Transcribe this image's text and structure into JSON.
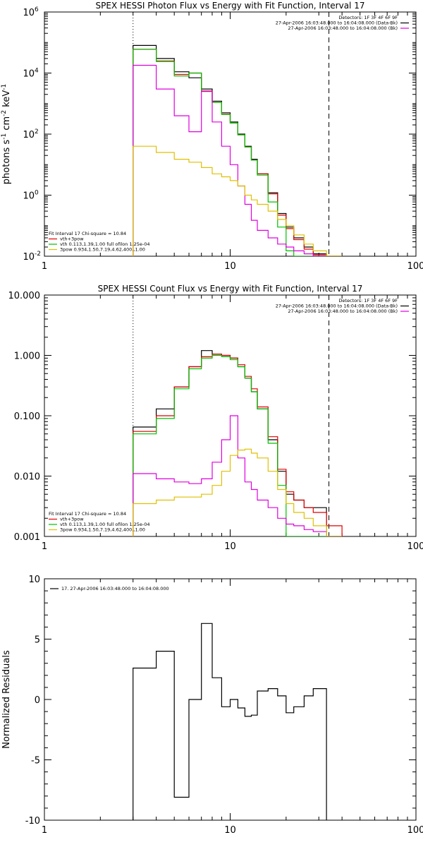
{
  "chart_data": [
    {
      "type": "line",
      "title": "SPEX HESSI Photon Flux vs Energy with Fit Function, Interval 17",
      "ylabel_parts": [
        "photons s",
        "-1",
        " cm",
        "-2",
        " keV",
        "-1"
      ],
      "xscale": "log",
      "yscale": "log",
      "xlim": [
        1,
        100
      ],
      "ylim": [
        0.01,
        1000000
      ],
      "x_ticks": [
        {
          "v": 1,
          "label": "1"
        },
        {
          "v": 10,
          "label": "10"
        },
        {
          "v": 100,
          "label": "100"
        }
      ],
      "y_ticks_exp": [
        {
          "v": 0.01,
          "base": "10",
          "exp": "-2"
        },
        {
          "v": 1,
          "base": "10",
          "exp": "0"
        },
        {
          "v": 100,
          "base": "10",
          "exp": "2"
        },
        {
          "v": 10000,
          "base": "10",
          "exp": "4"
        },
        {
          "v": 1000000,
          "base": "10",
          "exp": "6"
        }
      ],
      "vlines": [
        {
          "x": 3.0,
          "style": "dotted"
        },
        {
          "x": 34.0,
          "style": "dashed"
        }
      ],
      "legend_tr": [
        {
          "text": "Detectors: 1F 3F 4F 6F 9F",
          "swatch": null
        },
        {
          "text": "27-Apr-2006 16:03:48.000 to 16:04:08.000 (Data-Bk)",
          "swatch": "#000000"
        },
        {
          "text": "27-Apr-2006 16:03:48.000 to 16:04:08.000 (Bk)",
          "swatch": "#e000e0"
        }
      ],
      "legend_bl": [
        {
          "text": "Fit Interval 17    Chi-square = 10.84",
          "swatch": null
        },
        {
          "text": "vth+3pow",
          "swatch": "#e00000"
        },
        {
          "text": "vth 0.113,1.39,1.00  full ofilon 1.25e-04",
          "swatch": "#00c000"
        },
        {
          "text": "3pow 0.934,1.50,7.19,4.62,400.,1.00",
          "swatch": "#e0c000"
        }
      ],
      "edges": [
        3.0,
        4.0,
        5.0,
        6.0,
        7.0,
        8.0,
        9.0,
        10.0,
        11.0,
        12.0,
        13.0,
        14.0,
        16.0,
        18.0,
        20.0,
        22.0,
        25.0,
        28.0,
        33.0,
        40.0
      ],
      "series": [
        {
          "color": "#000000",
          "values": [
            80000,
            30000,
            11000,
            7000,
            3000,
            1200,
            500,
            250,
            100,
            40,
            15,
            5,
            1.2,
            0.25,
            0.09,
            0.04,
            0.02,
            0.012,
            0.008
          ]
        },
        {
          "color": "#e00000",
          "values": [
            60000,
            25000,
            9000,
            10000,
            2600,
            1100,
            450,
            230,
            95,
            38,
            14,
            5,
            1.1,
            0.22,
            0.08,
            0.035,
            0.017,
            0.011,
            0.003
          ]
        },
        {
          "color": "#00c000",
          "values": [
            60000,
            24000,
            8000,
            10000,
            2500,
            1100,
            440,
            230,
            95,
            38,
            14,
            4.5,
            0.6,
            0.09,
            0.015,
            0.01,
            0.01,
            0.01,
            0.01
          ]
        },
        {
          "color": "#e000e0",
          "values": [
            18000,
            3000,
            400,
            120,
            2500,
            250,
            40,
            10,
            2,
            0.5,
            0.15,
            0.07,
            0.04,
            0.025,
            0.02,
            0.015,
            0.012,
            0.01,
            0.01
          ]
        },
        {
          "color": "#e0c000",
          "values": [
            40,
            25,
            15,
            12,
            8,
            5,
            4,
            3,
            2,
            1,
            0.7,
            0.5,
            0.3,
            0.16,
            0.1,
            0.05,
            0.025,
            0.015,
            0.008
          ]
        }
      ]
    },
    {
      "type": "line",
      "title": "SPEX HESSI Count Flux vs Energy with Fit Function, Interval 17",
      "ylabel_parts": [],
      "xscale": "log",
      "yscale": "log",
      "xlim": [
        1,
        100
      ],
      "ylim": [
        0.001,
        10
      ],
      "x_ticks": [
        {
          "v": 1,
          "label": "1"
        },
        {
          "v": 10,
          "label": "10"
        },
        {
          "v": 100,
          "label": "100"
        }
      ],
      "y_ticks": [
        {
          "v": 0.001,
          "label": "0.001"
        },
        {
          "v": 0.01,
          "label": "0.010"
        },
        {
          "v": 0.1,
          "label": "0.100"
        },
        {
          "v": 1,
          "label": "1.000"
        },
        {
          "v": 10,
          "label": "10.000"
        }
      ],
      "vlines": [
        {
          "x": 3.0,
          "style": "dotted"
        },
        {
          "x": 34.0,
          "style": "dashed"
        }
      ],
      "legend_tr": [
        {
          "text": "Detectors: 1F 3F 4F 6F 9F",
          "swatch": null
        },
        {
          "text": "27-Apr-2006 16:03:48.000 to 16:04:08.000 (Data-Bk)",
          "swatch": "#000000"
        },
        {
          "text": "27-Apr-2006 16:03:48.000 to 16:04:08.000 (Bk)",
          "swatch": "#e000e0"
        }
      ],
      "legend_bl": [
        {
          "text": "Fit Interval 17    Chi-square = 10.84",
          "swatch": null
        },
        {
          "text": "vth+3pow",
          "swatch": "#e00000"
        },
        {
          "text": "vth 0.113,1.39,1.00  full ofilon 1.25e-04",
          "swatch": "#00c000"
        },
        {
          "text": "3pow 0.934,1.50,7.19,4.62,400.,1.00",
          "swatch": "#e0c000"
        }
      ],
      "edges": [
        3.0,
        4.0,
        5.0,
        6.0,
        7.0,
        8.0,
        9.0,
        10.0,
        11.0,
        12.0,
        13.0,
        14.0,
        16.0,
        18.0,
        20.0,
        22.0,
        25.0,
        28.0,
        33.0,
        40.0
      ],
      "series": [
        {
          "color": "#000000",
          "values": [
            0.065,
            0.13,
            0.3,
            0.65,
            1.2,
            1.05,
            1.0,
            0.9,
            0.65,
            0.42,
            0.25,
            0.13,
            0.04,
            0.012,
            0.005,
            0.004,
            0.003,
            0.003,
            0.0009
          ]
        },
        {
          "color": "#e00000",
          "values": [
            0.055,
            0.1,
            0.3,
            0.65,
            0.95,
            1.05,
            1.0,
            0.9,
            0.7,
            0.45,
            0.28,
            0.14,
            0.045,
            0.013,
            0.0055,
            0.004,
            0.003,
            0.0025,
            0.0015
          ]
        },
        {
          "color": "#00c000",
          "values": [
            0.05,
            0.09,
            0.28,
            0.6,
            0.9,
            1.0,
            0.95,
            0.85,
            0.65,
            0.42,
            0.25,
            0.13,
            0.035,
            0.007,
            0.0009,
            0.0009,
            0.0009,
            0.0009,
            0.0009
          ]
        },
        {
          "color": "#e000e0",
          "values": [
            0.011,
            0.009,
            0.008,
            0.0075,
            0.009,
            0.017,
            0.04,
            0.1,
            0.02,
            0.008,
            0.006,
            0.004,
            0.003,
            0.002,
            0.0016,
            0.0015,
            0.0013,
            0.0012,
            0.0009
          ]
        },
        {
          "color": "#e0c000",
          "values": [
            0.0035,
            0.004,
            0.0045,
            0.0045,
            0.005,
            0.007,
            0.012,
            0.022,
            0.027,
            0.028,
            0.024,
            0.02,
            0.012,
            0.006,
            0.0035,
            0.0025,
            0.002,
            0.0015,
            0.0009
          ]
        }
      ]
    },
    {
      "type": "line",
      "title": "",
      "ylabel": "Normalized Residuals",
      "xscale": "log",
      "yscale": "linear",
      "xlim": [
        1,
        100
      ],
      "ylim": [
        -10,
        10
      ],
      "x_ticks": [
        {
          "v": 1,
          "label": "1"
        },
        {
          "v": 10,
          "label": "10"
        },
        {
          "v": 100,
          "label": "100"
        }
      ],
      "y_ticks": [
        {
          "v": -10,
          "label": "-10"
        },
        {
          "v": -5,
          "label": "-5"
        },
        {
          "v": 0,
          "label": "0"
        },
        {
          "v": 5,
          "label": "5"
        },
        {
          "v": 10,
          "label": "10"
        }
      ],
      "vlines": [],
      "legend_tl": [
        {
          "text": "17. 27-Apr-2006 16:03:48.000 to 16:04:08.000",
          "swatch": "#000000"
        }
      ],
      "edges": [
        3.0,
        4.0,
        5.0,
        6.0,
        7.0,
        8.0,
        9.0,
        10.0,
        11.0,
        12.0,
        13.0,
        14.0,
        16.0,
        18.0,
        20.0,
        22.0,
        25.0,
        28.0,
        33.0
      ],
      "series": [
        {
          "color": "#000000",
          "values": [
            2.6,
            4.0,
            -8.1,
            0.0,
            6.3,
            1.8,
            -0.6,
            0.0,
            -0.7,
            -1.4,
            -1.3,
            0.7,
            0.9,
            0.3,
            -1.1,
            -0.6,
            0.3,
            0.9
          ]
        }
      ]
    }
  ]
}
